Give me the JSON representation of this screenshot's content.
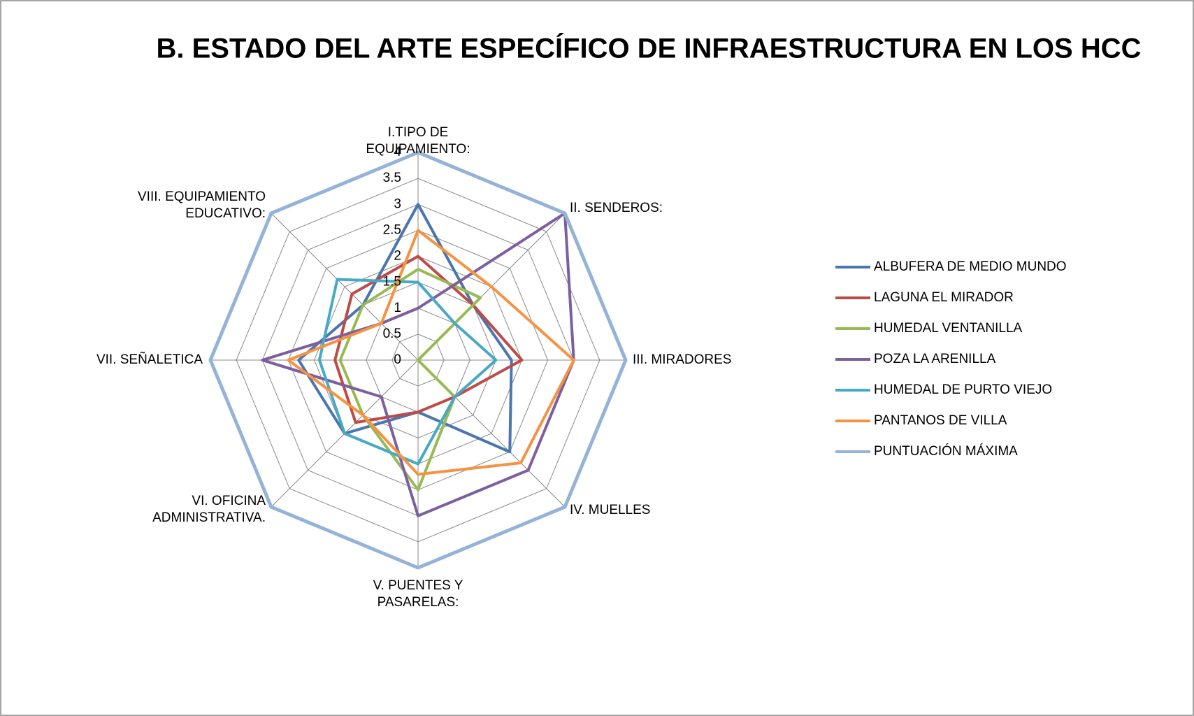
{
  "chart_data": {
    "type": "radar",
    "title": "B. ESTADO DEL ARTE ESPECÍFICO DE INFRAESTRUCTURA EN LOS HCC",
    "categories": [
      "I.TIPO DE EQUIPAMIENTO:",
      "II. SENDEROS:",
      "III. MIRADORES",
      "IV. MUELLES",
      "V. PUENTES Y PASARELAS:",
      "VI. OFICINA ADMINISTRATIVA.",
      "VII. SEÑALETICA",
      "VIII. EQUIPAMIENTO EDUCATIVO:"
    ],
    "ylim": [
      0,
      4
    ],
    "yticks": [
      0,
      0.5,
      1,
      1.5,
      2,
      2.5,
      3,
      3.5,
      4
    ],
    "grid": true,
    "legend": "right",
    "series": [
      {
        "name": "ALBUFERA DE MEDIO MUNDO",
        "color": "#4a76b0",
        "values": [
          3,
          1.5,
          1.8,
          2.5,
          1,
          2,
          2.3,
          1.5
        ]
      },
      {
        "name": "LAGUNA EL MIRADOR",
        "color": "#be4b48",
        "values": [
          2,
          1.5,
          2,
          1,
          1,
          1.7,
          1.6,
          1.8
        ]
      },
      {
        "name": "HUMEDAL VENTANILLA",
        "color": "#98b954",
        "values": [
          1.75,
          1.7,
          0,
          1,
          2.5,
          1.5,
          1.5,
          1.5
        ]
      },
      {
        "name": "POZA LA ARENILLA",
        "color": "#7d5fa0",
        "values": [
          1,
          4,
          3,
          3,
          3,
          1,
          3,
          1
        ]
      },
      {
        "name": "HUMEDAL DE PURTO VIEJO",
        "color": "#46aac5",
        "values": [
          1.5,
          1,
          1.5,
          1,
          2,
          2,
          1.9,
          2.2
        ]
      },
      {
        "name": "PANTANOS DE VILLA",
        "color": "#f59343",
        "values": [
          2.5,
          2,
          3,
          2.8,
          2.2,
          1.5,
          2.5,
          1
        ]
      },
      {
        "name": "PUNTUACIÓN MÁXIMA",
        "color": "#95b3d7",
        "values": [
          4,
          4,
          4,
          4,
          4,
          4,
          4,
          4
        ]
      }
    ]
  }
}
